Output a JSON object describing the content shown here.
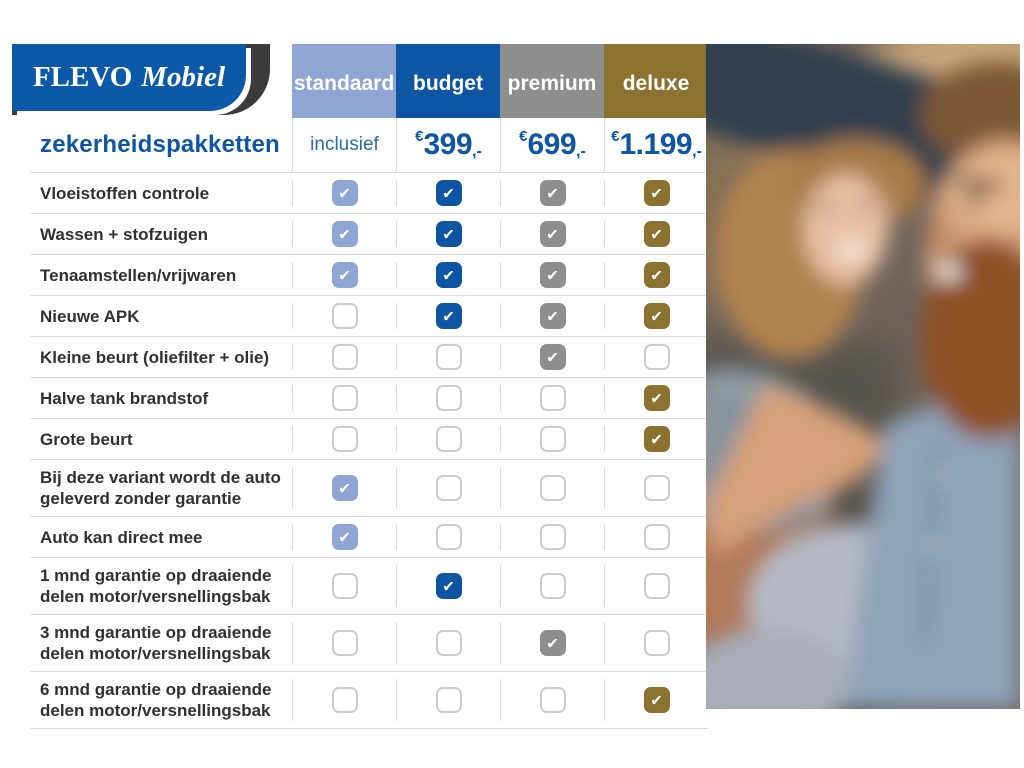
{
  "logo": {
    "primary": "FLEVO",
    "secondary": "Mobiel"
  },
  "title": "zekerheidspakketten",
  "colors": {
    "accent_blue": "#0E55A4",
    "logo_blue": "#0C58A9",
    "logo_swoosh": "#3B3B3D",
    "inclusief_blue": "#2E6CA9",
    "label_dark": "#313131",
    "grid_line": "#DCDCDC",
    "checkbox_border": "#CCCCCC"
  },
  "icons": {
    "check": "✔",
    "photo": "couple-in-car-photo"
  },
  "chart_data": {
    "type": "table",
    "title": "zekerheidspakketten",
    "legend_position": "top",
    "columns": [
      {
        "label": "standaard",
        "color": "#8FA5D3",
        "price_text": "inclusief"
      },
      {
        "label": "budget",
        "color": "#0E56A3",
        "price_currency": "€",
        "price_amount": "399",
        "price_suffix": ",-"
      },
      {
        "label": "premium",
        "color": "#8E8E90",
        "price_currency": "€",
        "price_amount": "699",
        "price_suffix": ",-"
      },
      {
        "label": "deluxe",
        "color": "#8C7230",
        "price_currency": "€",
        "price_amount": "1.199",
        "price_suffix": ",-"
      }
    ],
    "rows": [
      {
        "label": "Vloeistoffen controle",
        "included": [
          true,
          true,
          true,
          true
        ]
      },
      {
        "label": "Wassen + stofzuigen",
        "included": [
          true,
          true,
          true,
          true
        ]
      },
      {
        "label": "Tenaamstellen/vrijwaren",
        "included": [
          true,
          true,
          true,
          true
        ]
      },
      {
        "label": "Nieuwe APK",
        "included": [
          false,
          true,
          true,
          true
        ]
      },
      {
        "label": "Kleine beurt (oliefilter + olie)",
        "included": [
          false,
          false,
          true,
          false
        ]
      },
      {
        "label": "Halve tank brandstof",
        "included": [
          false,
          false,
          false,
          true
        ]
      },
      {
        "label": "Grote beurt",
        "included": [
          false,
          false,
          false,
          true
        ]
      },
      {
        "label": "Bij deze variant wordt de auto\ngeleverd zonder garantie",
        "included": [
          true,
          false,
          false,
          false
        ]
      },
      {
        "label": "Auto kan direct mee",
        "included": [
          true,
          false,
          false,
          false
        ]
      },
      {
        "label": "1 mnd garantie op draaiende\ndelen motor/versnellingsbak",
        "included": [
          false,
          true,
          false,
          false
        ]
      },
      {
        "label": "3 mnd garantie op draaiende\ndelen motor/versnellingsbak",
        "included": [
          false,
          false,
          true,
          false
        ]
      },
      {
        "label": "6 mnd garantie op draaiende\ndelen motor/versnellingsbak",
        "included": [
          false,
          false,
          false,
          true
        ]
      }
    ]
  }
}
